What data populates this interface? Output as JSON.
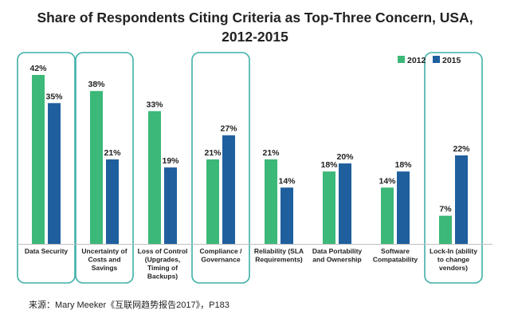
{
  "chart_data": {
    "type": "bar",
    "title": "Share of Respondents Citing Criteria as Top-Three Concern, USA,",
    "subtitle": "2012-2015",
    "categories": [
      [
        "Data Security"
      ],
      [
        "Uncertainty of",
        "Costs and",
        "Savings"
      ],
      [
        "Loss of Control",
        "(Upgrades,",
        "Timing of",
        "Backups)"
      ],
      [
        "Compliance /",
        "Governance"
      ],
      [
        "Reliability (SLA",
        "Requirements)"
      ],
      [
        "Data Portability",
        "and Ownership"
      ],
      [
        "Software",
        "Compatability"
      ],
      [
        "Lock-In (ability",
        "to change",
        "vendors)"
      ]
    ],
    "series": [
      {
        "name": "2012",
        "color": "#3cb878",
        "values": [
          42,
          38,
          33,
          21,
          21,
          18,
          14,
          7
        ],
        "labels": [
          "42%",
          "38%",
          "33%",
          "21%",
          "21%",
          "18%",
          "14%",
          "7%"
        ]
      },
      {
        "name": "2015",
        "color": "#1f5f9e",
        "values": [
          35,
          21,
          19,
          27,
          14,
          20,
          18,
          22
        ],
        "labels": [
          "35%",
          "21%",
          "19%",
          "27%",
          "14%",
          "20%",
          "18%",
          "22%"
        ]
      }
    ],
    "ylim": [
      0,
      42
    ],
    "grid": false,
    "legend": "top-right",
    "highlighted_categories": [
      0,
      1,
      3,
      7
    ],
    "highlight_color": "#3fb0a8"
  },
  "source": "来源：Mary Meeker《互联网趋势报告2017》，P183"
}
